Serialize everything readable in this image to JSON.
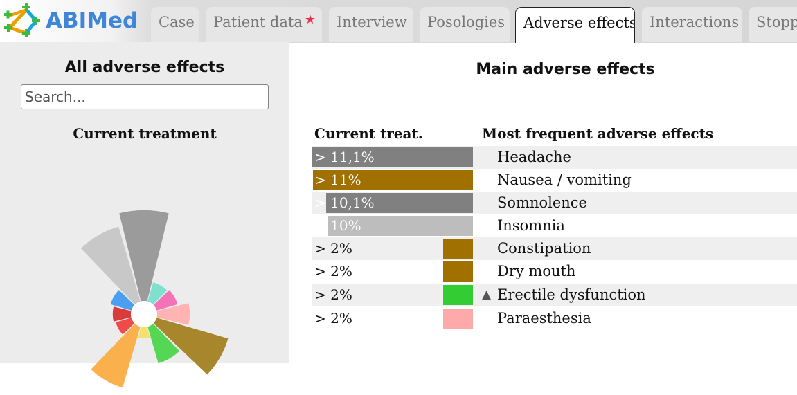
{
  "app": {
    "name": "ABIMed"
  },
  "tabs": [
    {
      "label": "Case",
      "active": false
    },
    {
      "label": "Patient data",
      "active": false,
      "badge": "star-icon"
    },
    {
      "label": "Interview",
      "active": false
    },
    {
      "label": "Posologies",
      "active": false
    },
    {
      "label": "Adverse effects",
      "active": true
    },
    {
      "label": "Interactions",
      "active": false
    },
    {
      "label": "Stopp/",
      "active": false
    }
  ],
  "left_panel": {
    "title": "All adverse effects",
    "search_placeholder": "Search...",
    "search_value": "",
    "current_treatment_title": "Current treatment"
  },
  "main": {
    "title": "Main adverse effects",
    "col_treatment": "Current treat.",
    "col_effects": "Most frequent adverse effects",
    "rows": [
      {
        "pct": "> 11,1%",
        "level": 11.1,
        "color": "#808080",
        "effect": "Headache",
        "flag": ""
      },
      {
        "pct": "> 11%",
        "level": 11,
        "color": "#a07000",
        "effect": "Nausea / vomiting",
        "flag": ""
      },
      {
        "pct": "> 10,1%",
        "level": 10.1,
        "color": "#808080",
        "effect": "Somnolence",
        "flag": ""
      },
      {
        "pct": "> 10%",
        "level": 10,
        "color": "#bdbdbd",
        "effect": "Insomnia",
        "flag": ""
      },
      {
        "pct": "> 2%",
        "level": 2,
        "color": "#a07000",
        "effect": "Constipation",
        "flag": ""
      },
      {
        "pct": "> 2%",
        "level": 2,
        "color": "#a07000",
        "effect": "Dry mouth",
        "flag": ""
      },
      {
        "pct": "> 2%",
        "level": 2,
        "color": "#33cc33",
        "effect": "Erectile dysfunction",
        "flag": "▲"
      },
      {
        "pct": "> 2%",
        "level": 2,
        "color": "#ffaaaa",
        "effect": "Paraesthesia",
        "flag": ""
      }
    ]
  },
  "polar_segments": [
    {
      "color": "#9b9b9b",
      "level": 1.0
    },
    {
      "color": "#7fe0cf",
      "level": 0.22
    },
    {
      "color": "#f472b6",
      "level": 0.24
    },
    {
      "color": "#ffb3b3",
      "level": 0.36
    },
    {
      "color": "#a8862c",
      "level": 0.82
    },
    {
      "color": "#55d655",
      "level": 0.42
    },
    {
      "color": "#f5e06b",
      "level": 0.12
    },
    {
      "color": "#fab04c",
      "level": 0.7
    },
    {
      "color": "#f04a4a",
      "level": 0.18
    },
    {
      "color": "#d93a3a",
      "level": 0.2
    },
    {
      "color": "#4a9ff0",
      "level": 0.24
    },
    {
      "color": "#c8c8c8",
      "level": 0.86
    }
  ],
  "icons": {
    "logo": "abimed-molecule-icon",
    "badge": "star-icon",
    "flag": "up-triangle-icon"
  }
}
